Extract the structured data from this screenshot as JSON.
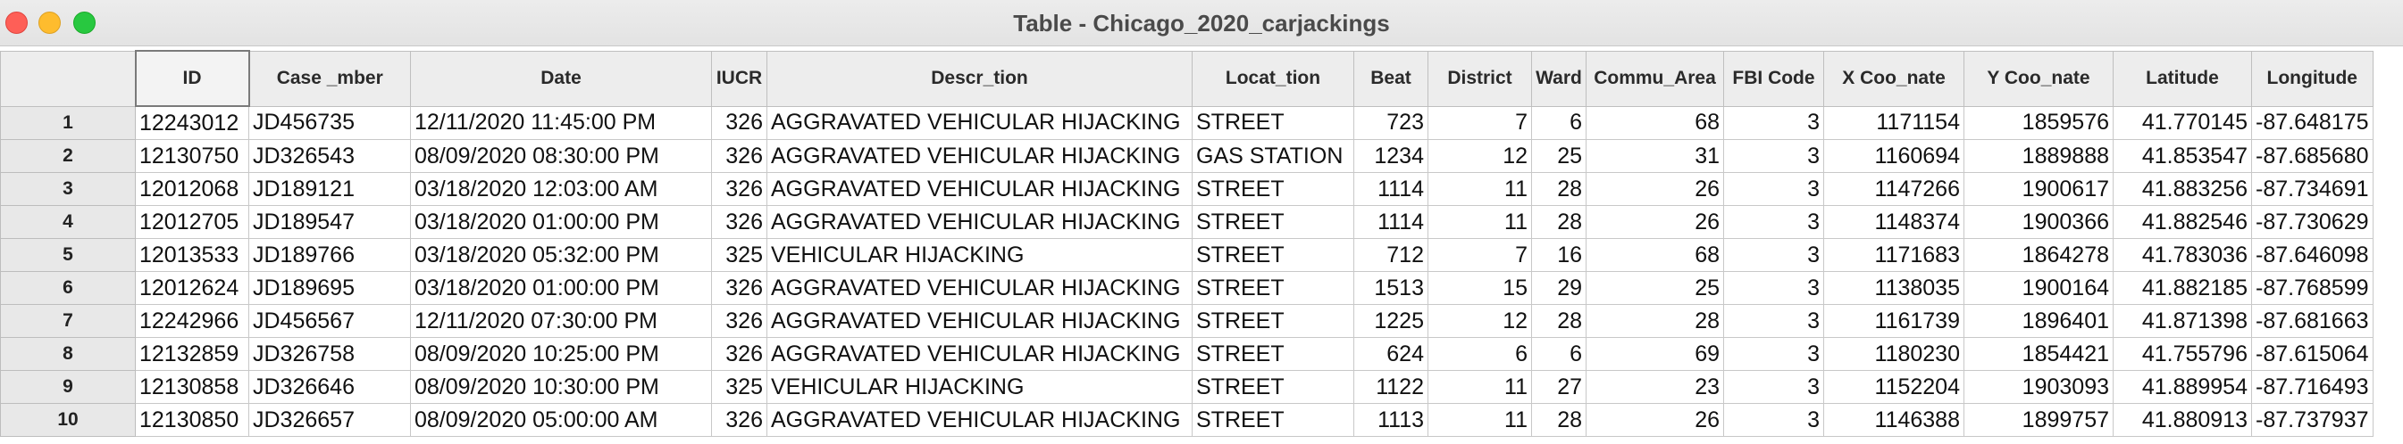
{
  "window": {
    "title": "Table - Chicago_2020_carjackings"
  },
  "table": {
    "columns": [
      "ID",
      "Case _mber",
      "Date",
      "IUCR",
      "Descr_tion",
      "Locat_tion",
      "Beat",
      "District",
      "Ward",
      "Commu_Area",
      "FBI Code",
      "X Coo_nate",
      "Y Coo_nate",
      "Latitude",
      "Longitude"
    ],
    "row_numbers": [
      "1",
      "2",
      "3",
      "4",
      "5",
      "6",
      "7",
      "8",
      "9",
      "10"
    ],
    "rows": [
      [
        "12243012",
        "JD456735",
        "12/11/2020 11:45:00 PM",
        "326",
        "AGGRAVATED VEHICULAR HIJACKING",
        "STREET",
        "723",
        "7",
        "6",
        "68",
        "3",
        "1171154",
        "1859576",
        "41.770145",
        "-87.648175"
      ],
      [
        "12130750",
        "JD326543",
        "08/09/2020 08:30:00 PM",
        "326",
        "AGGRAVATED VEHICULAR HIJACKING",
        "GAS STATION",
        "1234",
        "12",
        "25",
        "31",
        "3",
        "1160694",
        "1889888",
        "41.853547",
        "-87.685680"
      ],
      [
        "12012068",
        "JD189121",
        "03/18/2020 12:03:00 AM",
        "326",
        "AGGRAVATED VEHICULAR HIJACKING",
        "STREET",
        "1114",
        "11",
        "28",
        "26",
        "3",
        "1147266",
        "1900617",
        "41.883256",
        "-87.734691"
      ],
      [
        "12012705",
        "JD189547",
        "03/18/2020 01:00:00 PM",
        "326",
        "AGGRAVATED VEHICULAR HIJACKING",
        "STREET",
        "1114",
        "11",
        "28",
        "26",
        "3",
        "1148374",
        "1900366",
        "41.882546",
        "-87.730629"
      ],
      [
        "12013533",
        "JD189766",
        "03/18/2020 05:32:00 PM",
        "325",
        "VEHICULAR HIJACKING",
        "STREET",
        "712",
        "7",
        "16",
        "68",
        "3",
        "1171683",
        "1864278",
        "41.783036",
        "-87.646098"
      ],
      [
        "12012624",
        "JD189695",
        "03/18/2020 01:00:00 PM",
        "326",
        "AGGRAVATED VEHICULAR HIJACKING",
        "STREET",
        "1513",
        "15",
        "29",
        "25",
        "3",
        "1138035",
        "1900164",
        "41.882185",
        "-87.768599"
      ],
      [
        "12242966",
        "JD456567",
        "12/11/2020 07:30:00 PM",
        "326",
        "AGGRAVATED VEHICULAR HIJACKING",
        "STREET",
        "1225",
        "12",
        "28",
        "28",
        "3",
        "1161739",
        "1896401",
        "41.871398",
        "-87.681663"
      ],
      [
        "12132859",
        "JD326758",
        "08/09/2020 10:25:00 PM",
        "326",
        "AGGRAVATED VEHICULAR HIJACKING",
        "STREET",
        "624",
        "6",
        "6",
        "69",
        "3",
        "1180230",
        "1854421",
        "41.755796",
        "-87.615064"
      ],
      [
        "12130858",
        "JD326646",
        "08/09/2020 10:30:00 PM",
        "325",
        "VEHICULAR HIJACKING",
        "STREET",
        "1122",
        "11",
        "27",
        "23",
        "3",
        "1152204",
        "1903093",
        "41.889954",
        "-87.716493"
      ],
      [
        "12130850",
        "JD326657",
        "08/09/2020 05:00:00 AM",
        "326",
        "AGGRAVATED VEHICULAR HIJACKING",
        "STREET",
        "1113",
        "11",
        "28",
        "26",
        "3",
        "1146388",
        "1899757",
        "41.880913",
        "-87.737937"
      ]
    ]
  }
}
